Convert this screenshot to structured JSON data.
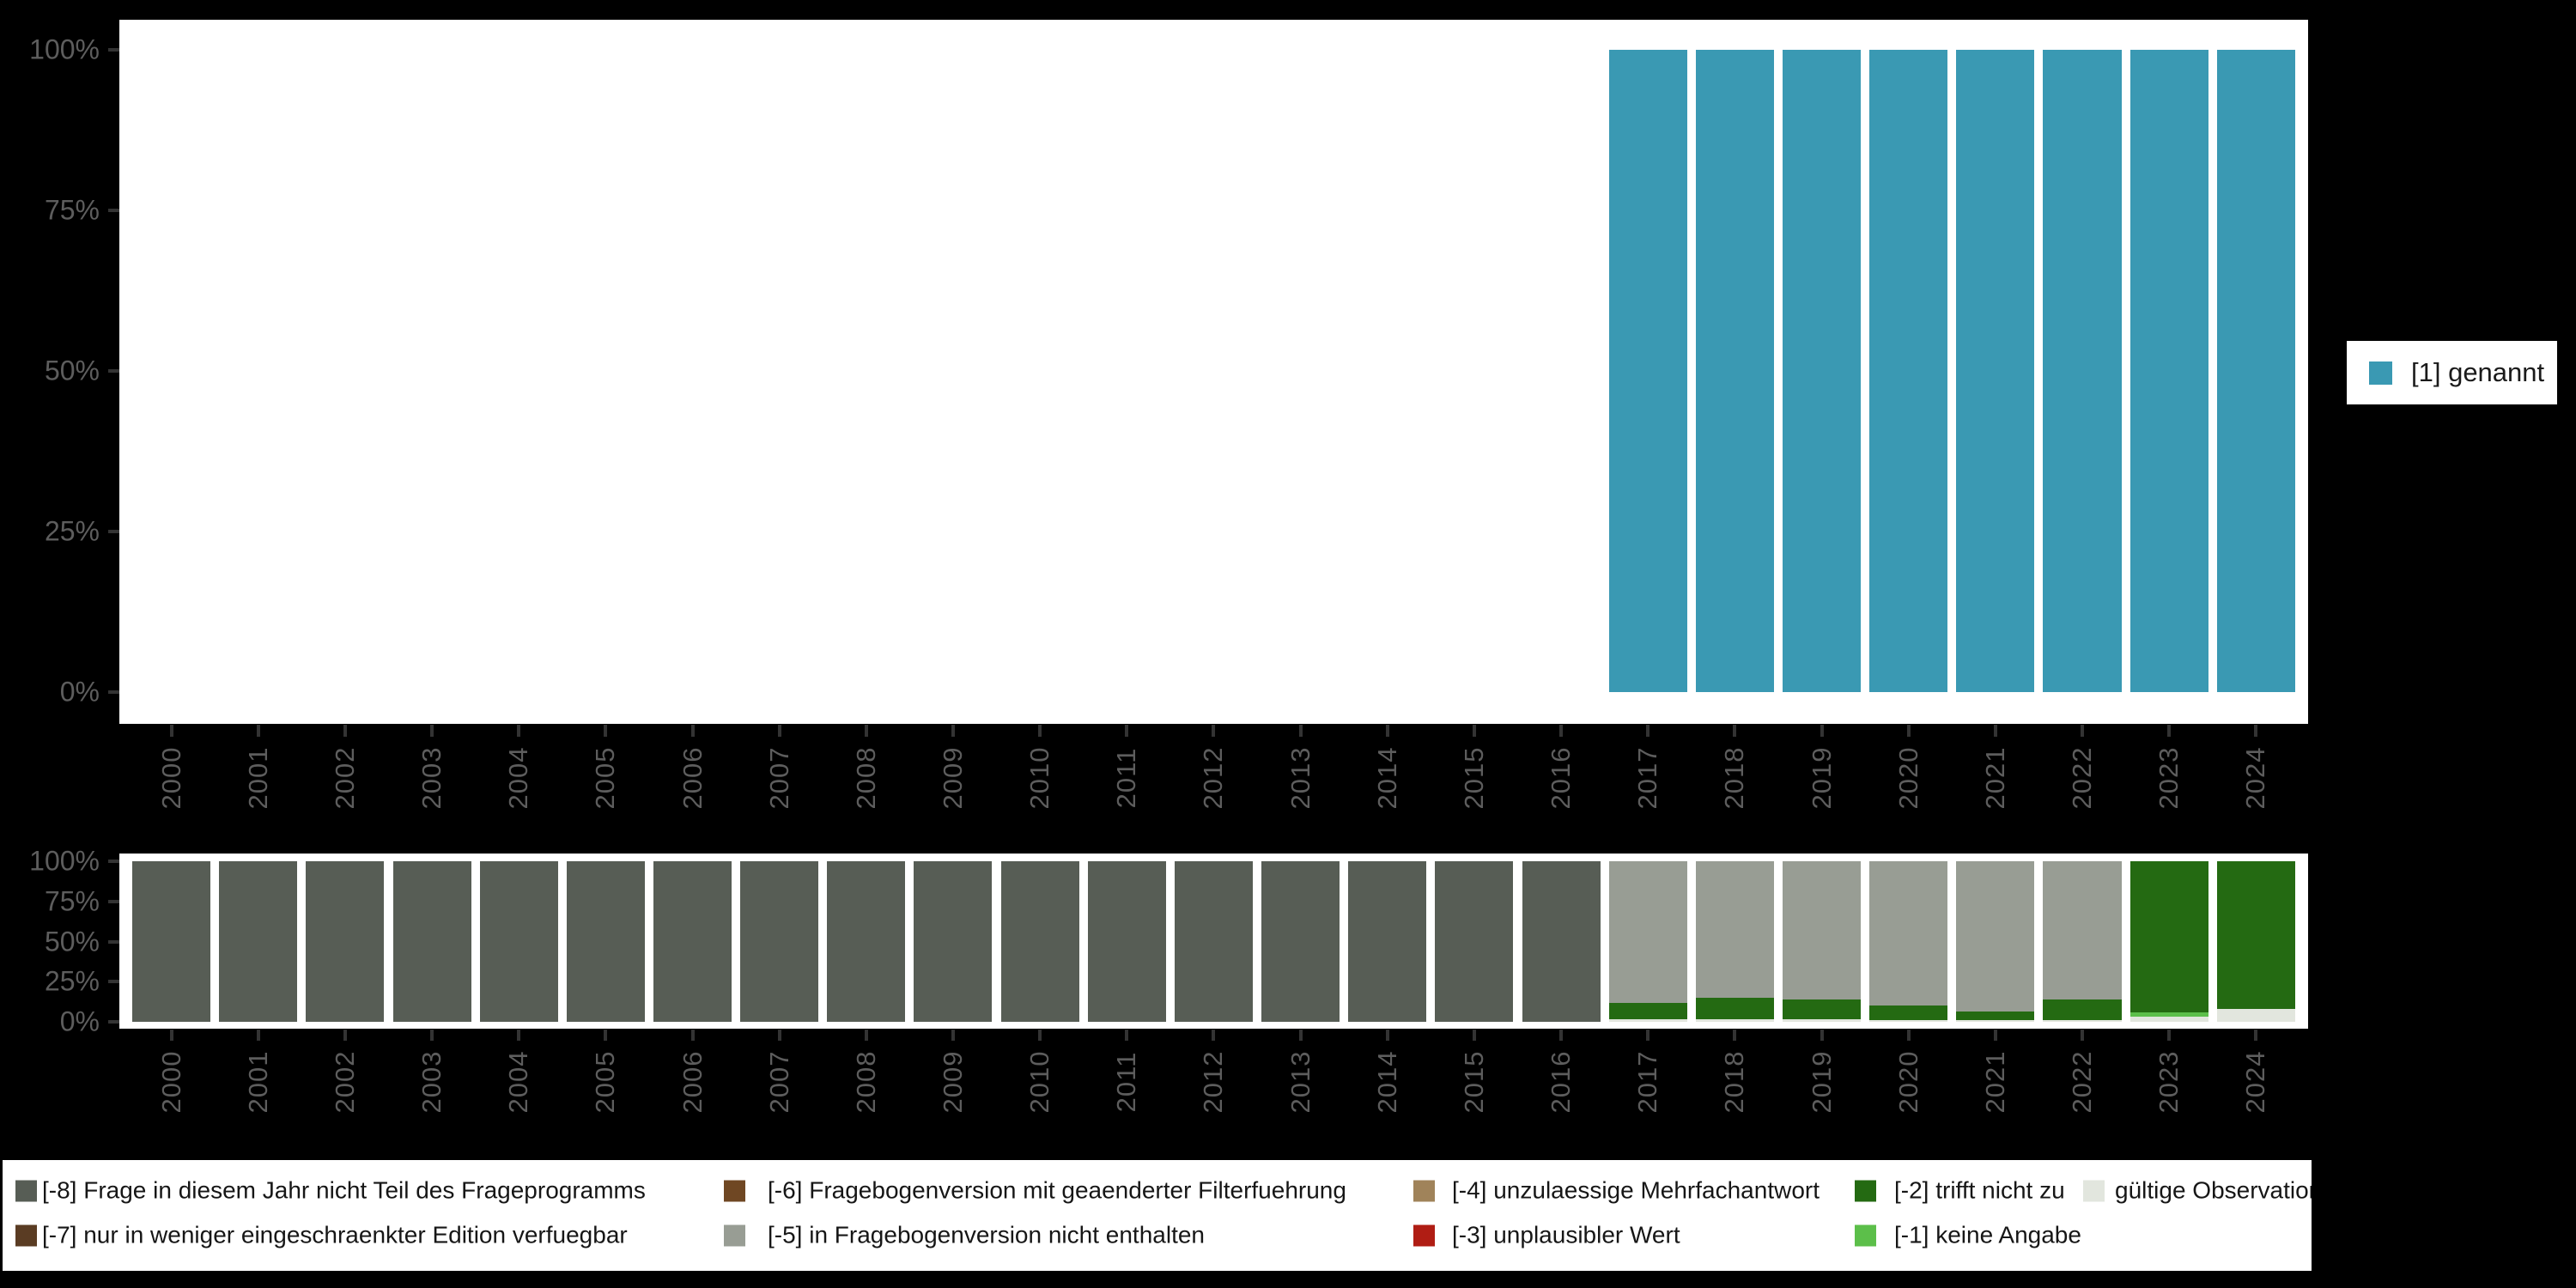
{
  "top_legend": {
    "label": "[1] genannt",
    "color": "#3A99B3"
  },
  "years": [
    "2000",
    "2001",
    "2002",
    "2003",
    "2004",
    "2005",
    "2006",
    "2007",
    "2008",
    "2009",
    "2010",
    "2011",
    "2012",
    "2013",
    "2014",
    "2015",
    "2016",
    "2017",
    "2018",
    "2019",
    "2020",
    "2021",
    "2022",
    "2023",
    "2024"
  ],
  "chart_data": [
    {
      "type": "bar",
      "stacked": true,
      "title": "",
      "xlabel": "",
      "ylabel": "",
      "ylim": [
        0,
        100
      ],
      "grid": false,
      "legend_position": "right",
      "y_tick_labels_top_to_bottom": [
        "100%",
        "75%",
        "50%",
        "25%",
        "0%"
      ],
      "categories": [
        "2000",
        "2001",
        "2002",
        "2003",
        "2004",
        "2005",
        "2006",
        "2007",
        "2008",
        "2009",
        "2010",
        "2011",
        "2012",
        "2013",
        "2014",
        "2015",
        "2016",
        "2017",
        "2018",
        "2019",
        "2020",
        "2021",
        "2022",
        "2023",
        "2024"
      ],
      "series": [
        {
          "name": "[1] genannt",
          "color": "#3A99B3",
          "values": [
            0,
            0,
            0,
            0,
            0,
            0,
            0,
            0,
            0,
            0,
            0,
            0,
            0,
            0,
            0,
            0,
            0,
            100,
            100,
            100,
            100,
            100,
            100,
            100,
            100
          ]
        }
      ]
    },
    {
      "type": "bar",
      "stacked": true,
      "title": "",
      "xlabel": "",
      "ylabel": "",
      "ylim": [
        0,
        100
      ],
      "grid": false,
      "legend_position": "bottom",
      "y_tick_labels_top_to_bottom": [
        "100%",
        "75%",
        "50%",
        "25%",
        "0%"
      ],
      "categories": [
        "2000",
        "2001",
        "2002",
        "2003",
        "2004",
        "2005",
        "2006",
        "2007",
        "2008",
        "2009",
        "2010",
        "2011",
        "2012",
        "2013",
        "2014",
        "2015",
        "2016",
        "2017",
        "2018",
        "2019",
        "2020",
        "2021",
        "2022",
        "2023",
        "2024"
      ],
      "series": [
        {
          "name": "gültige Observationen",
          "color": "#E2E6DE",
          "values": [
            0,
            0,
            0,
            0,
            0,
            0,
            0,
            0,
            0,
            0,
            0,
            0,
            0,
            0,
            0,
            0,
            0,
            1.5,
            1.5,
            1.5,
            1,
            1,
            1,
            3,
            8
          ]
        },
        {
          "name": "[-1] keine Angabe",
          "color": "#5CBF4A",
          "values": [
            0,
            0,
            0,
            0,
            0,
            0,
            0,
            0,
            0,
            0,
            0,
            0,
            0,
            0,
            0,
            0,
            0,
            0,
            0,
            0,
            0,
            0,
            0,
            3,
            0
          ]
        },
        {
          "name": "[-2] trifft nicht zu",
          "color": "#246A12",
          "values": [
            0,
            0,
            0,
            0,
            0,
            0,
            0,
            0,
            0,
            0,
            0,
            0,
            0,
            0,
            0,
            0,
            0,
            10.5,
            13.5,
            12.5,
            9,
            5.5,
            13,
            94,
            92
          ]
        },
        {
          "name": "[-3] unplausibler Wert",
          "color": "#B01D14",
          "values": [
            0,
            0,
            0,
            0,
            0,
            0,
            0,
            0,
            0,
            0,
            0,
            0,
            0,
            0,
            0,
            0,
            0,
            0,
            0,
            0,
            0,
            0,
            0,
            0,
            0
          ]
        },
        {
          "name": "[-4] unzulaessige Mehrfachantwort",
          "color": "#A0835A",
          "values": [
            0,
            0,
            0,
            0,
            0,
            0,
            0,
            0,
            0,
            0,
            0,
            0,
            0,
            0,
            0,
            0,
            0,
            0,
            0,
            0,
            0,
            0,
            0,
            0,
            0
          ]
        },
        {
          "name": "[-5] in Fragebogenversion nicht enthalten",
          "color": "#989D94",
          "values": [
            0,
            0,
            0,
            0,
            0,
            0,
            0,
            0,
            0,
            0,
            0,
            0,
            0,
            0,
            0,
            0,
            0,
            88,
            85,
            86,
            90,
            93.5,
            86,
            0,
            0
          ]
        },
        {
          "name": "[-6] Fragebogenversion mit geaenderter Filterfuehrung",
          "color": "#6F4723",
          "values": [
            0,
            0,
            0,
            0,
            0,
            0,
            0,
            0,
            0,
            0,
            0,
            0,
            0,
            0,
            0,
            0,
            0,
            0,
            0,
            0,
            0,
            0,
            0,
            0,
            0
          ]
        },
        {
          "name": "[-7] nur in weniger eingeschraenkter Edition verfuegbar",
          "color": "#5A3C23",
          "values": [
            0,
            0,
            0,
            0,
            0,
            0,
            0,
            0,
            0,
            0,
            0,
            0,
            0,
            0,
            0,
            0,
            0,
            0,
            0,
            0,
            0,
            0,
            0,
            0,
            0
          ]
        },
        {
          "name": "[-8] Frage in diesem Jahr nicht Teil des Frageprogramms",
          "color": "#575D55",
          "values": [
            100,
            100,
            100,
            100,
            100,
            100,
            100,
            100,
            100,
            100,
            100,
            100,
            100,
            100,
            100,
            100,
            100,
            0,
            0,
            0,
            0,
            0,
            0,
            0,
            0
          ]
        }
      ]
    }
  ],
  "bottom_legend": {
    "entries": [
      {
        "label": "[-8] Frage in diesem Jahr nicht Teil des Frageprogramms",
        "color": "#575D55",
        "col": 0,
        "row": 0
      },
      {
        "label": "[-7] nur in weniger eingeschraenkter Edition verfuegbar",
        "color": "#5A3C23",
        "col": 0,
        "row": 1
      },
      {
        "label": "[-6] Fragebogenversion mit geaenderter Filterfuehrung",
        "color": "#6F4723",
        "col": 1,
        "row": 0
      },
      {
        "label": "[-5] in Fragebogenversion nicht enthalten",
        "color": "#989D94",
        "col": 1,
        "row": 1
      },
      {
        "label": "[-4] unzulaessige Mehrfachantwort",
        "color": "#A0835A",
        "col": 2,
        "row": 0
      },
      {
        "label": "[-3] unplausibler Wert",
        "color": "#B01D14",
        "col": 2,
        "row": 1
      },
      {
        "label": "[-2] trifft nicht zu",
        "color": "#246A12",
        "col": 3,
        "row": 0
      },
      {
        "label": "[-1] keine Angabe",
        "color": "#5CBF4A",
        "col": 3,
        "row": 1
      },
      {
        "label": "gültige Observationen",
        "color": "#E2E6DE",
        "col": 4,
        "row": 0
      }
    ]
  }
}
